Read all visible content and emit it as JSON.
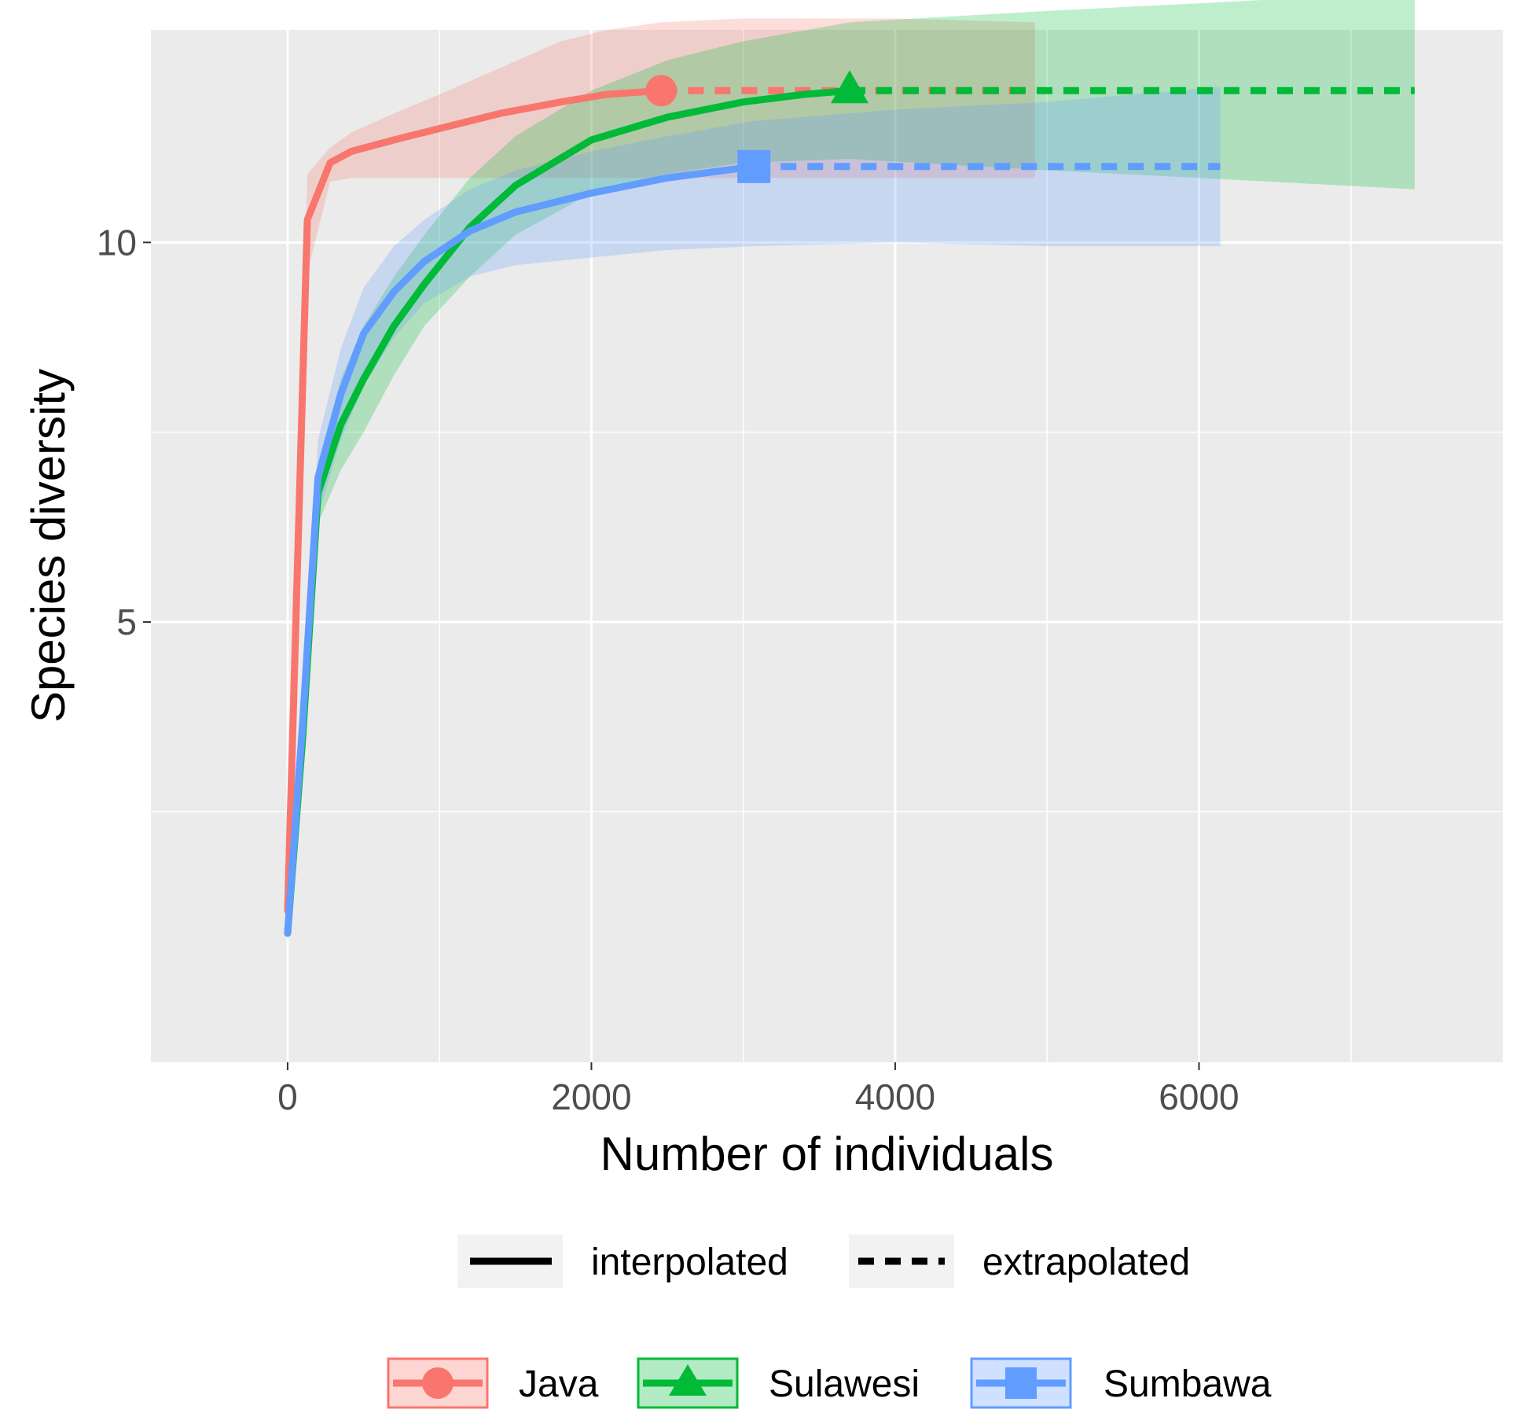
{
  "chart_data": {
    "type": "line",
    "xlabel": "Number of individuals",
    "ylabel": "Species diversity",
    "xlim": [
      -900,
      8000
    ],
    "ylim": [
      -0.8,
      12.8
    ],
    "x_ticks": [
      0,
      2000,
      4000,
      6000
    ],
    "y_ticks": [
      5,
      10
    ],
    "x_minor_grid": [
      1000,
      3000,
      5000,
      7000
    ],
    "y_minor_grid": [
      2.5,
      7.5
    ],
    "grid": true,
    "series": [
      {
        "name": "Java",
        "color": "#F8766D",
        "marker": "circle",
        "observed": {
          "x": 2460,
          "y": 12.0
        },
        "interpolated": {
          "x": [
            0,
            130,
            280,
            420,
            700,
            1000,
            1400,
            1800,
            2100,
            2460
          ],
          "y": [
            1.2,
            10.3,
            11.05,
            11.2,
            11.35,
            11.5,
            11.7,
            11.85,
            11.95,
            12.0
          ]
        },
        "extrapolated": {
          "x": [
            2460,
            4920
          ],
          "y": [
            12.0,
            12.0
          ]
        },
        "ci": {
          "x": [
            0,
            130,
            280,
            420,
            700,
            1000,
            1400,
            1800,
            2100,
            2460,
            3000,
            4000,
            4920
          ],
          "lower": [
            1.1,
            9.6,
            10.8,
            10.85,
            10.85,
            10.85,
            10.85,
            10.85,
            10.85,
            10.85,
            10.85,
            10.85,
            10.85
          ],
          "upper": [
            1.3,
            10.9,
            11.25,
            11.45,
            11.7,
            11.95,
            12.3,
            12.65,
            12.8,
            12.9,
            12.95,
            12.95,
            12.9
          ]
        }
      },
      {
        "name": "Sulawesi",
        "color": "#00BA38",
        "marker": "triangle",
        "observed": {
          "x": 3700,
          "y": 12.0
        },
        "interpolated": {
          "x": [
            0,
            100,
            200,
            350,
            500,
            700,
            900,
            1200,
            1500,
            2000,
            2500,
            3000,
            3400,
            3700
          ],
          "y": [
            0.9,
            3.5,
            6.7,
            7.6,
            8.2,
            8.9,
            9.45,
            10.2,
            10.75,
            11.35,
            11.65,
            11.85,
            11.95,
            12.0
          ]
        },
        "extrapolated": {
          "x": [
            3700,
            7420
          ],
          "y": [
            12.0,
            12.0
          ]
        },
        "ci": {
          "x": [
            0,
            100,
            200,
            350,
            500,
            700,
            900,
            1200,
            1500,
            2000,
            2500,
            3000,
            3700,
            5000,
            6000,
            7420
          ],
          "lower": [
            0.8,
            3.1,
            6.3,
            7.0,
            7.5,
            8.25,
            8.9,
            9.55,
            10.1,
            10.65,
            10.9,
            11.05,
            11.1,
            10.95,
            10.85,
            10.7
          ],
          "upper": [
            1.0,
            3.9,
            7.1,
            8.2,
            8.9,
            9.55,
            10.1,
            10.85,
            11.4,
            12.0,
            12.4,
            12.65,
            12.9,
            13.05,
            13.15,
            13.3
          ]
        }
      },
      {
        "name": "Sumbawa",
        "color": "#619CFF",
        "marker": "square",
        "observed": {
          "x": 3070,
          "y": 11.0
        },
        "interpolated": {
          "x": [
            0,
            100,
            200,
            350,
            500,
            700,
            900,
            1200,
            1500,
            2000,
            2500,
            3070
          ],
          "y": [
            0.9,
            3.7,
            6.9,
            8.0,
            8.8,
            9.35,
            9.75,
            10.15,
            10.4,
            10.65,
            10.85,
            11.0
          ]
        },
        "extrapolated": {
          "x": [
            3070,
            6140
          ],
          "y": [
            11.0,
            11.0
          ]
        },
        "ci": {
          "x": [
            0,
            100,
            200,
            350,
            500,
            700,
            900,
            1200,
            1500,
            2000,
            2500,
            3070,
            4000,
            5000,
            6140
          ],
          "lower": [
            0.8,
            3.3,
            6.4,
            7.4,
            8.1,
            8.75,
            9.2,
            9.55,
            9.7,
            9.8,
            9.9,
            9.95,
            10.0,
            9.95,
            9.95
          ],
          "upper": [
            1.0,
            4.1,
            7.4,
            8.6,
            9.4,
            9.95,
            10.3,
            10.7,
            10.95,
            11.2,
            11.4,
            11.6,
            11.75,
            11.85,
            12.05
          ]
        }
      }
    ],
    "legend_method": {
      "position": "bottom",
      "items": [
        {
          "label": "interpolated",
          "linetype": "solid"
        },
        {
          "label": "extrapolated",
          "linetype": "dashed"
        }
      ]
    },
    "legend_group": {
      "position": "bottom",
      "items": [
        "Java",
        "Sulawesi",
        "Sumbawa"
      ]
    }
  }
}
